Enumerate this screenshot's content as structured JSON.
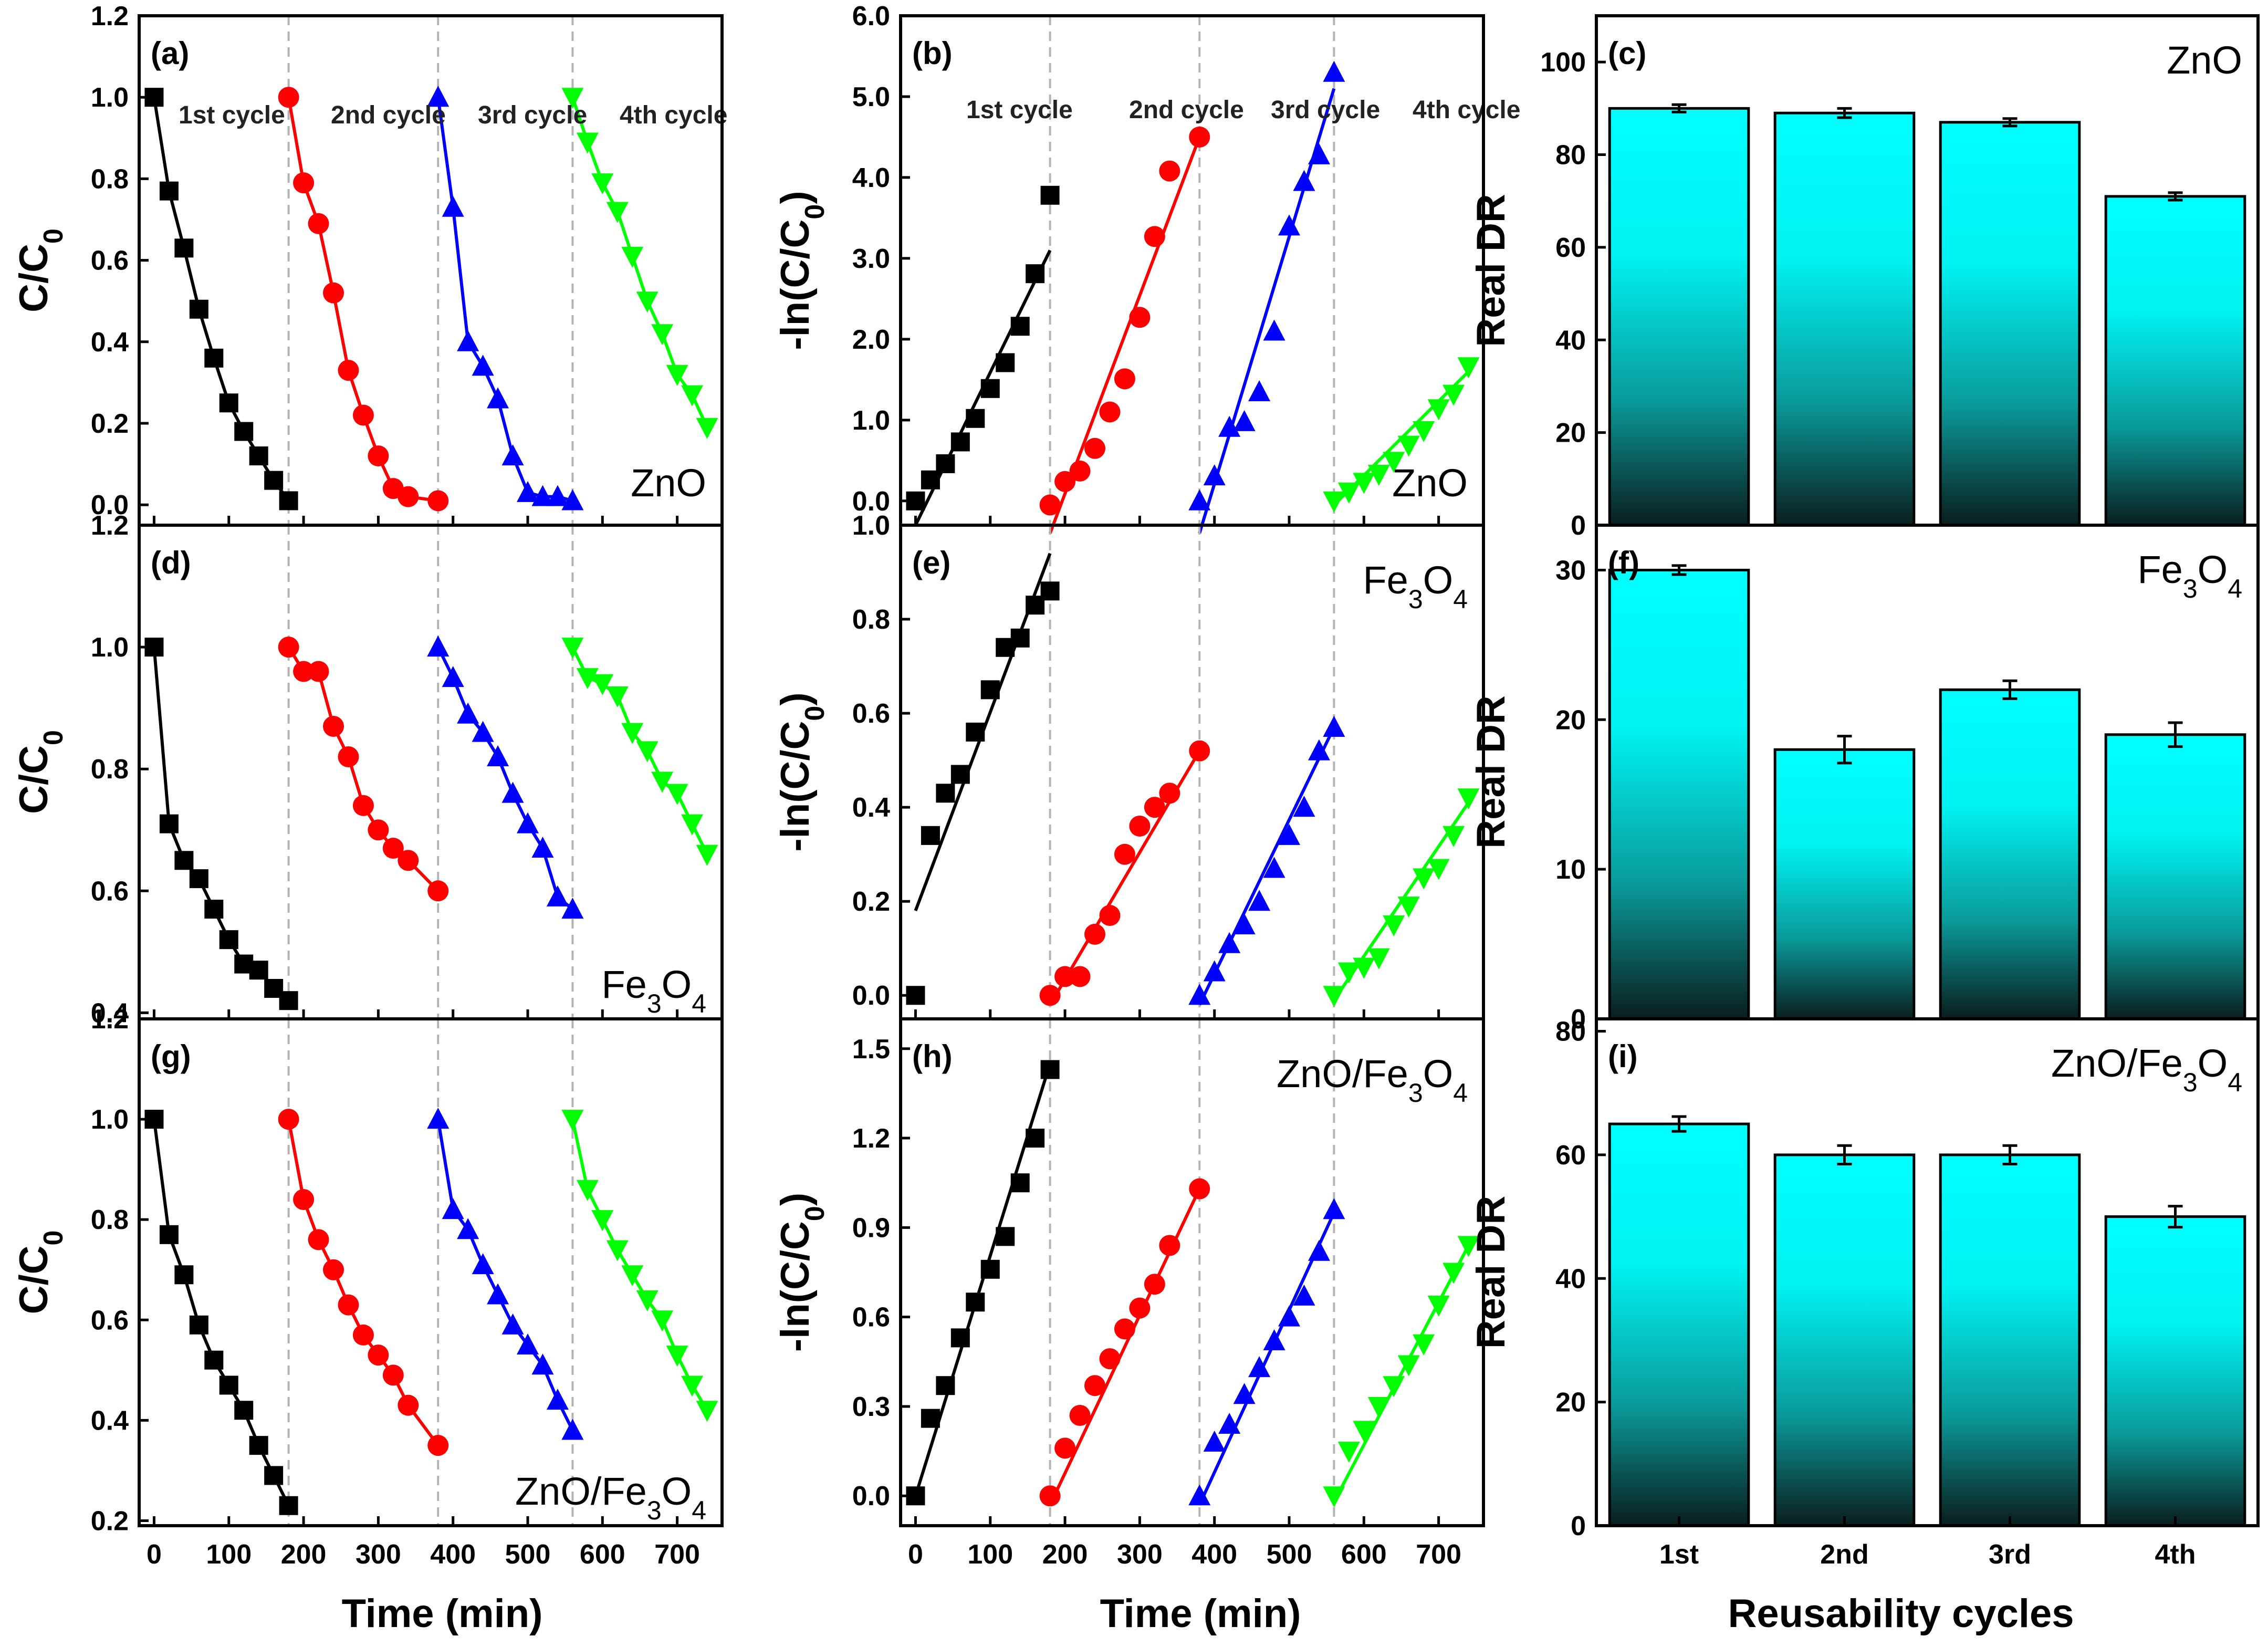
{
  "figure": {
    "x_axis_label": "Time (min)",
    "y_axis_label_a": "C/C",
    "y_axis_label_b": "-ln(C/C",
    "y_axis_label_c": "Real DR",
    "x_axis_label_c": "Reusability cycles",
    "cycle_labels": [
      "1st cycle",
      "2nd cycle",
      "3rd cycle",
      "4th cycle"
    ],
    "bar_categories": [
      "1st",
      "2nd",
      "3rd",
      "4th"
    ],
    "colors": {
      "cycle1": "#000000",
      "cycle2": "#ff0000",
      "cycle3": "#0000ff",
      "cycle4": "#00ff00",
      "bar_top": "#00ffff",
      "bar_bottom": "#0a1e1e",
      "divider": "#b3b3b3"
    }
  },
  "chart_data": [
    {
      "id": "a",
      "panel_label": "(a)",
      "material": "ZnO",
      "type": "line",
      "xlabel": "Time (min)",
      "ylabel": "C/C0",
      "xlim": [
        -20,
        760
      ],
      "ylim": [
        -0.05,
        1.2
      ],
      "yticks": [
        0.0,
        0.2,
        0.4,
        0.6,
        0.8,
        1.0,
        1.2
      ],
      "series": [
        {
          "name": "1st cycle",
          "color": "#000000",
          "x": [
            0,
            20,
            40,
            60,
            80,
            100,
            120,
            140,
            160,
            180
          ],
          "y": [
            1.0,
            0.77,
            0.63,
            0.48,
            0.36,
            0.25,
            0.18,
            0.12,
            0.06,
            0.01
          ]
        },
        {
          "name": "2nd cycle",
          "color": "#ff0000",
          "x": [
            180,
            200,
            220,
            240,
            260,
            280,
            300,
            320,
            340,
            380
          ],
          "y": [
            1.0,
            0.79,
            0.69,
            0.52,
            0.33,
            0.22,
            0.12,
            0.04,
            0.02,
            0.01
          ]
        },
        {
          "name": "3rd cycle",
          "color": "#0000ff",
          "x": [
            380,
            400,
            420,
            440,
            460,
            480,
            500,
            520,
            540,
            560
          ],
          "y": [
            1.0,
            0.73,
            0.4,
            0.34,
            0.26,
            0.12,
            0.03,
            0.02,
            0.02,
            0.01
          ]
        },
        {
          "name": "4th cycle",
          "color": "#00ff00",
          "x": [
            560,
            580,
            600,
            620,
            640,
            660,
            680,
            700,
            720,
            740
          ],
          "y": [
            1.0,
            0.89,
            0.79,
            0.72,
            0.61,
            0.5,
            0.42,
            0.32,
            0.27,
            0.19
          ]
        }
      ]
    },
    {
      "id": "b",
      "panel_label": "(b)",
      "material": "ZnO",
      "type": "scatter_fit",
      "xlabel": "Time (min)",
      "ylabel": "-ln(C/C0)",
      "xlim": [
        -20,
        760
      ],
      "ylim": [
        -0.3,
        6.0
      ],
      "yticks": [
        0.0,
        1.0,
        2.0,
        3.0,
        4.0,
        5.0,
        6.0
      ],
      "series": [
        {
          "name": "1st cycle",
          "color": "#000000",
          "x": [
            0,
            20,
            40,
            60,
            80,
            100,
            120,
            140,
            160,
            180
          ],
          "y": [
            0.0,
            0.26,
            0.46,
            0.73,
            1.02,
            1.39,
            1.71,
            2.16,
            2.81,
            3.78
          ],
          "fit": [
            [
              0,
              -0.3
            ],
            [
              180,
              3.1
            ]
          ]
        },
        {
          "name": "2nd cycle",
          "color": "#ff0000",
          "x": [
            180,
            200,
            220,
            240,
            260,
            280,
            300,
            320,
            340,
            380
          ],
          "y": [
            -0.05,
            0.24,
            0.37,
            0.65,
            1.1,
            1.51,
            2.27,
            3.27,
            4.08,
            4.5
          ],
          "fit": [
            [
              180,
              -0.4
            ],
            [
              380,
              4.5
            ]
          ]
        },
        {
          "name": "3rd cycle",
          "color": "#0000ff",
          "x": [
            380,
            400,
            420,
            440,
            460,
            480,
            500,
            520,
            540,
            560
          ],
          "y": [
            0.0,
            0.31,
            0.91,
            0.98,
            1.35,
            2.1,
            3.4,
            3.95,
            4.28,
            5.3
          ],
          "fit": [
            [
              380,
              -0.4
            ],
            [
              560,
              5.1
            ]
          ]
        },
        {
          "name": "4th cycle",
          "color": "#00ff00",
          "x": [
            560,
            580,
            600,
            620,
            640,
            660,
            680,
            700,
            720,
            740
          ],
          "y": [
            0.0,
            0.11,
            0.23,
            0.33,
            0.49,
            0.69,
            0.87,
            1.14,
            1.32,
            1.66
          ],
          "fit": [
            [
              560,
              -0.05
            ],
            [
              740,
              1.6
            ]
          ]
        }
      ]
    },
    {
      "id": "c",
      "panel_label": "(c)",
      "material": "ZnO",
      "type": "bar",
      "ylabel": "Real DR",
      "ylim": [
        0,
        110
      ],
      "yticks": [
        0,
        20,
        40,
        60,
        80,
        100
      ],
      "categories": [
        "1st",
        "2nd",
        "3rd",
        "4th"
      ],
      "values": [
        90,
        89,
        87,
        71
      ],
      "errors": [
        0.8,
        1.0,
        0.8,
        0.8
      ]
    },
    {
      "id": "d",
      "panel_label": "(d)",
      "material": "Fe3O4",
      "type": "line",
      "xlabel": "Time (min)",
      "ylabel": "C/C0",
      "xlim": [
        -20,
        760
      ],
      "ylim": [
        0.39,
        1.2
      ],
      "yticks": [
        0.4,
        0.6,
        0.8,
        1.0,
        1.2
      ],
      "series": [
        {
          "name": "1st cycle",
          "color": "#000000",
          "x": [
            0,
            20,
            40,
            60,
            80,
            100,
            120,
            140,
            160,
            180
          ],
          "y": [
            1.0,
            0.71,
            0.65,
            0.62,
            0.57,
            0.52,
            0.48,
            0.47,
            0.44,
            0.42
          ]
        },
        {
          "name": "2nd cycle",
          "color": "#ff0000",
          "x": [
            180,
            200,
            220,
            240,
            260,
            280,
            300,
            320,
            340,
            380
          ],
          "y": [
            1.0,
            0.96,
            0.96,
            0.87,
            0.82,
            0.74,
            0.7,
            0.67,
            0.65,
            0.6
          ]
        },
        {
          "name": "3rd cycle",
          "color": "#0000ff",
          "x": [
            380,
            400,
            420,
            440,
            460,
            480,
            500,
            520,
            540,
            560
          ],
          "y": [
            1.0,
            0.95,
            0.89,
            0.86,
            0.82,
            0.76,
            0.71,
            0.67,
            0.59,
            0.57
          ]
        },
        {
          "name": "4th cycle",
          "color": "#00ff00",
          "x": [
            560,
            580,
            600,
            620,
            640,
            660,
            680,
            700,
            720,
            740
          ],
          "y": [
            1.0,
            0.95,
            0.94,
            0.92,
            0.86,
            0.83,
            0.78,
            0.76,
            0.71,
            0.66
          ]
        }
      ]
    },
    {
      "id": "e",
      "panel_label": "(e)",
      "material": "Fe3O4",
      "type": "scatter_fit",
      "xlabel": "Time (min)",
      "ylabel": "-ln(C/C0)",
      "xlim": [
        -20,
        760
      ],
      "ylim": [
        -0.05,
        1.0
      ],
      "yticks": [
        0.0,
        0.2,
        0.4,
        0.6,
        0.8,
        1.0
      ],
      "series": [
        {
          "name": "1st cycle",
          "color": "#000000",
          "x": [
            0,
            20,
            40,
            60,
            80,
            100,
            120,
            140,
            160,
            180
          ],
          "y": [
            0.0,
            0.34,
            0.43,
            0.47,
            0.56,
            0.65,
            0.74,
            0.76,
            0.83,
            0.86
          ],
          "fit": [
            [
              0,
              0.18
            ],
            [
              180,
              0.94
            ]
          ]
        },
        {
          "name": "2nd cycle",
          "color": "#ff0000",
          "x": [
            180,
            200,
            220,
            240,
            260,
            280,
            300,
            320,
            340,
            380
          ],
          "y": [
            0.0,
            0.04,
            0.04,
            0.13,
            0.17,
            0.3,
            0.36,
            0.4,
            0.43,
            0.52
          ],
          "fit": [
            [
              180,
              -0.02
            ],
            [
              380,
              0.52
            ]
          ]
        },
        {
          "name": "3rd cycle",
          "color": "#0000ff",
          "x": [
            380,
            400,
            420,
            440,
            460,
            480,
            500,
            520,
            540,
            560
          ],
          "y": [
            0.0,
            0.05,
            0.11,
            0.15,
            0.2,
            0.27,
            0.34,
            0.4,
            0.52,
            0.57
          ],
          "fit": [
            [
              380,
              -0.02
            ],
            [
              560,
              0.57
            ]
          ]
        },
        {
          "name": "4th cycle",
          "color": "#00ff00",
          "x": [
            560,
            580,
            600,
            620,
            640,
            660,
            680,
            700,
            720,
            740
          ],
          "y": [
            0.0,
            0.05,
            0.06,
            0.08,
            0.15,
            0.19,
            0.25,
            0.27,
            0.34,
            0.42
          ],
          "fit": [
            [
              560,
              -0.01
            ],
            [
              740,
              0.41
            ]
          ]
        }
      ]
    },
    {
      "id": "f",
      "panel_label": "(f)",
      "material": "Fe3O4",
      "type": "bar",
      "ylabel": "Real DR",
      "ylim": [
        0,
        33
      ],
      "yticks": [
        0,
        10,
        20,
        30
      ],
      "categories": [
        "1st",
        "2nd",
        "3rd",
        "4th"
      ],
      "values": [
        30,
        18,
        22,
        19
      ],
      "errors": [
        0.3,
        0.9,
        0.6,
        0.8
      ]
    },
    {
      "id": "g",
      "panel_label": "(g)",
      "material": "ZnO/Fe3O4",
      "type": "line",
      "xlabel": "Time (min)",
      "ylabel": "C/C0",
      "xlim": [
        -20,
        760
      ],
      "ylim": [
        0.19,
        1.2
      ],
      "yticks": [
        0.2,
        0.4,
        0.6,
        0.8,
        1.0,
        1.2
      ],
      "series": [
        {
          "name": "1st cycle",
          "color": "#000000",
          "x": [
            0,
            20,
            40,
            60,
            80,
            100,
            120,
            140,
            160,
            180
          ],
          "y": [
            1.0,
            0.77,
            0.69,
            0.59,
            0.52,
            0.47,
            0.42,
            0.35,
            0.29,
            0.23
          ]
        },
        {
          "name": "2nd cycle",
          "color": "#ff0000",
          "x": [
            180,
            200,
            220,
            240,
            260,
            280,
            300,
            320,
            340,
            380
          ],
          "y": [
            1.0,
            0.84,
            0.76,
            0.7,
            0.63,
            0.57,
            0.53,
            0.49,
            0.43,
            0.35
          ]
        },
        {
          "name": "3rd cycle",
          "color": "#0000ff",
          "x": [
            380,
            400,
            420,
            440,
            460,
            480,
            500,
            520,
            540,
            560
          ],
          "y": [
            1.0,
            0.82,
            0.78,
            0.71,
            0.65,
            0.59,
            0.55,
            0.51,
            0.44,
            0.38
          ]
        },
        {
          "name": "4th cycle",
          "color": "#00ff00",
          "x": [
            560,
            580,
            600,
            620,
            640,
            660,
            680,
            700,
            720,
            740
          ],
          "y": [
            1.0,
            0.86,
            0.8,
            0.74,
            0.69,
            0.64,
            0.6,
            0.53,
            0.47,
            0.42
          ]
        }
      ]
    },
    {
      "id": "h",
      "panel_label": "(h)",
      "material": "ZnO/Fe3O4",
      "type": "scatter_fit",
      "xlabel": "Time (min)",
      "ylabel": "-ln(C/C0)",
      "xlim": [
        -20,
        760
      ],
      "ylim": [
        -0.1,
        1.6
      ],
      "yticks": [
        0.0,
        0.3,
        0.6,
        0.9,
        1.2,
        1.5
      ],
      "series": [
        {
          "name": "1st cycle",
          "color": "#000000",
          "x": [
            0,
            20,
            40,
            60,
            80,
            100,
            120,
            140,
            160,
            180
          ],
          "y": [
            0.0,
            0.26,
            0.37,
            0.53,
            0.65,
            0.76,
            0.87,
            1.05,
            1.2,
            1.43
          ],
          "fit": [
            [
              0,
              0.0
            ],
            [
              180,
              1.45
            ]
          ]
        },
        {
          "name": "2nd cycle",
          "color": "#ff0000",
          "x": [
            180,
            200,
            220,
            240,
            260,
            280,
            300,
            320,
            340,
            380
          ],
          "y": [
            0.0,
            0.16,
            0.27,
            0.37,
            0.46,
            0.56,
            0.63,
            0.71,
            0.84,
            1.03
          ],
          "fit": [
            [
              180,
              -0.03
            ],
            [
              380,
              1.03
            ]
          ]
        },
        {
          "name": "3rd cycle",
          "color": "#0000ff",
          "x": [
            380,
            400,
            420,
            440,
            460,
            480,
            500,
            520,
            540,
            560
          ],
          "y": [
            0.0,
            0.18,
            0.24,
            0.34,
            0.43,
            0.52,
            0.6,
            0.67,
            0.82,
            0.96
          ],
          "fit": [
            [
              380,
              -0.03
            ],
            [
              560,
              0.95
            ]
          ]
        },
        {
          "name": "4th cycle",
          "color": "#00ff00",
          "x": [
            560,
            580,
            600,
            620,
            640,
            660,
            680,
            700,
            720,
            740
          ],
          "y": [
            0.0,
            0.15,
            0.22,
            0.3,
            0.37,
            0.44,
            0.51,
            0.64,
            0.75,
            0.84
          ],
          "fit": [
            [
              560,
              -0.02
            ],
            [
              740,
              0.84
            ]
          ]
        }
      ]
    },
    {
      "id": "i",
      "panel_label": "(i)",
      "material": "ZnO/Fe3O4",
      "type": "bar",
      "ylabel": "Real DR",
      "xlabel": "Reusability cycles",
      "ylim": [
        0,
        82
      ],
      "yticks": [
        0,
        20,
        40,
        60,
        80
      ],
      "categories": [
        "1st",
        "2nd",
        "3rd",
        "4th"
      ],
      "values": [
        65,
        60,
        60,
        50
      ],
      "errors": [
        1.2,
        1.5,
        1.5,
        1.7
      ]
    }
  ]
}
